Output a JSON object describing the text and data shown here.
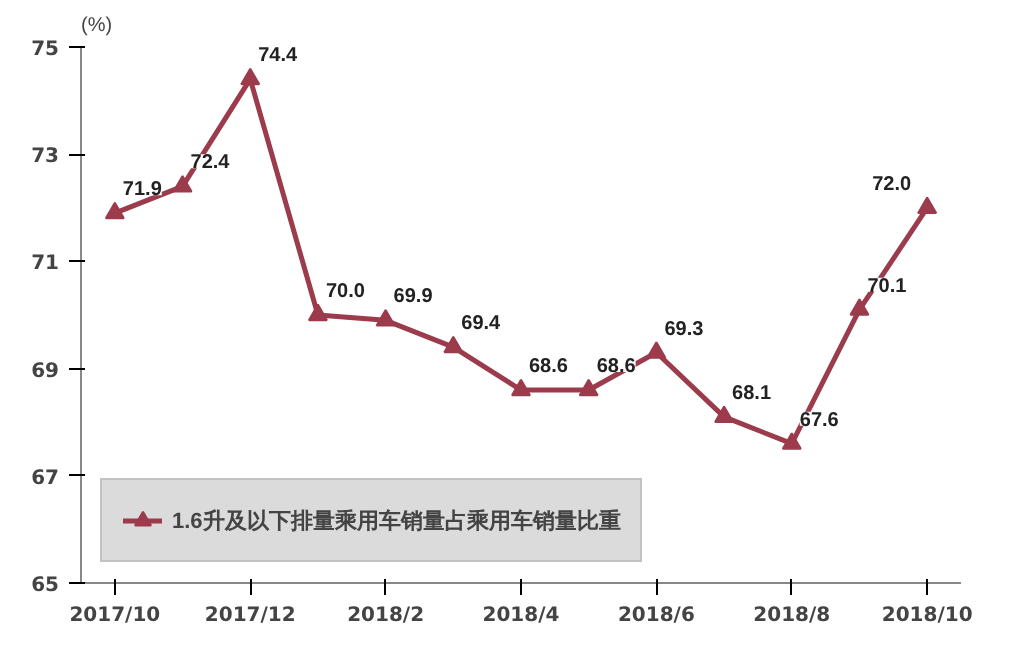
{
  "chart_data": {
    "type": "line",
    "ylabel": "(%)",
    "categories": [
      "2017/10",
      null,
      "2017/12",
      null,
      "2018/2",
      null,
      "2018/4",
      null,
      "2018/6",
      null,
      "2018/8",
      null,
      "2018/10"
    ],
    "series": [
      {
        "name": "1.6升及以下排量乘用车销量占乘用车销量比重",
        "color": "#9b3b4b",
        "values": [
          71.9,
          72.4,
          74.4,
          70.0,
          69.9,
          69.4,
          68.6,
          68.6,
          69.3,
          68.1,
          67.6,
          70.1,
          72.0
        ],
        "value_labels": [
          "71.9",
          "72.4",
          "74.4",
          "70.0",
          "69.9",
          "69.4",
          "68.6",
          "68.6",
          "69.3",
          "68.1",
          "67.6",
          "70.1",
          "72.0"
        ]
      }
    ],
    "ylim": [
      65,
      75
    ],
    "yticks": [
      65,
      67,
      69,
      71,
      73,
      75
    ],
    "marker": "triangle",
    "line_style": "solid",
    "grid": false,
    "legend": "bottom left"
  }
}
